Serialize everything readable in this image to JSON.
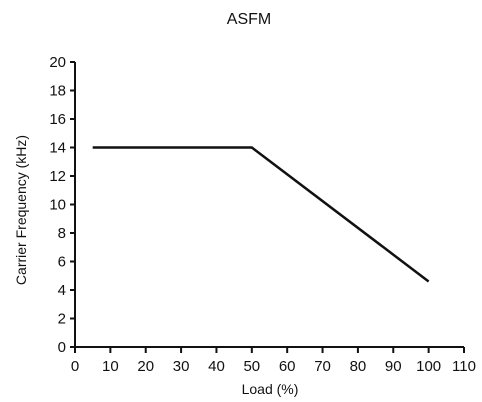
{
  "chart_data": {
    "type": "line",
    "title": "ASFM",
    "xlabel": "Load (%)",
    "ylabel": "Carrier Frequency (kHz)",
    "xlim": [
      0,
      110
    ],
    "ylim": [
      0,
      20
    ],
    "x_ticks": [
      0,
      10,
      20,
      30,
      40,
      50,
      60,
      70,
      80,
      90,
      100,
      110
    ],
    "y_ticks": [
      0,
      2,
      4,
      6,
      8,
      10,
      12,
      14,
      16,
      18,
      20
    ],
    "grid": false,
    "series": [
      {
        "x": [
          5,
          50,
          100
        ],
        "y": [
          14,
          14,
          4.6
        ],
        "color": "#111111"
      }
    ]
  }
}
